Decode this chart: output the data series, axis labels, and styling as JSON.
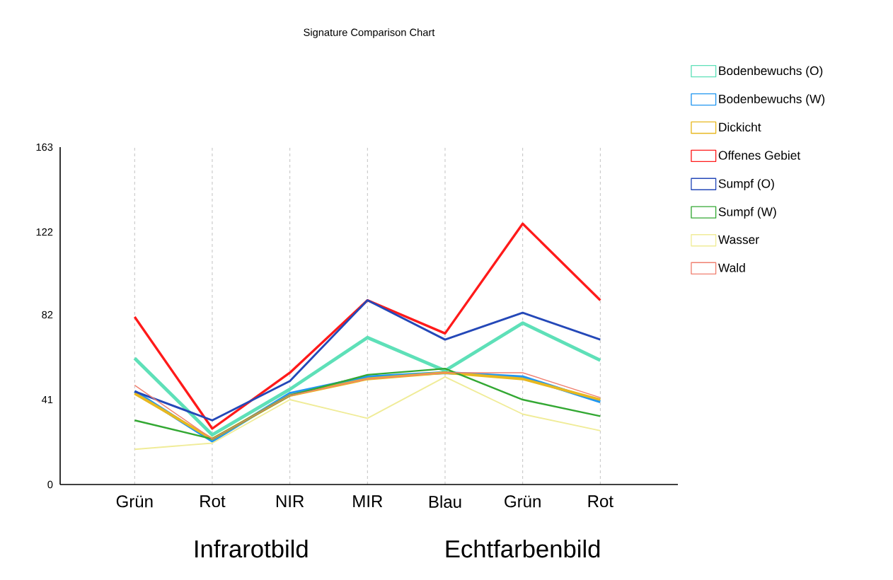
{
  "chart_data": {
    "type": "line",
    "title": "Signature Comparison Chart",
    "categories": [
      "Grün",
      "Rot",
      "NIR",
      "MIR",
      "Blau",
      "Grün",
      "Rot"
    ],
    "series": [
      {
        "name": "Bodenbewuchs (O)",
        "color": "#5ee0b8",
        "values": [
          61,
          24,
          46,
          71,
          55,
          78,
          60
        ]
      },
      {
        "name": "Bodenbewuchs (W)",
        "color": "#2196f0",
        "values": [
          45,
          21,
          44,
          52,
          54,
          52,
          40
        ]
      },
      {
        "name": "Dickicht",
        "color": "#e8b820",
        "values": [
          44,
          22,
          43,
          51,
          54,
          51,
          41
        ]
      },
      {
        "name": "Offenes Gebiet",
        "color": "#ff1a1a",
        "values": [
          81,
          27,
          54,
          89,
          73,
          126,
          89
        ]
      },
      {
        "name": "Sumpf (O)",
        "color": "#2448b8",
        "values": [
          45,
          31,
          50,
          89,
          70,
          83,
          70
        ]
      },
      {
        "name": "Sumpf (W)",
        "color": "#33a833",
        "values": [
          31,
          22,
          43,
          53,
          56,
          41,
          33
        ]
      },
      {
        "name": "Wasser",
        "color": "#f0ec98",
        "values": [
          17,
          20,
          41,
          32,
          52,
          34,
          26
        ]
      },
      {
        "name": "Wald",
        "color": "#f08070",
        "values": [
          48,
          22,
          43,
          51,
          54,
          54,
          42
        ]
      }
    ],
    "ylim": [
      0,
      163
    ],
    "yticks": [
      0,
      41,
      82,
      122,
      163
    ],
    "grid": "x",
    "legend": "top right",
    "marker": "none",
    "line_style": "solid",
    "annotations": [
      "Infrarotbild",
      "Echtfarbenbild"
    ]
  }
}
